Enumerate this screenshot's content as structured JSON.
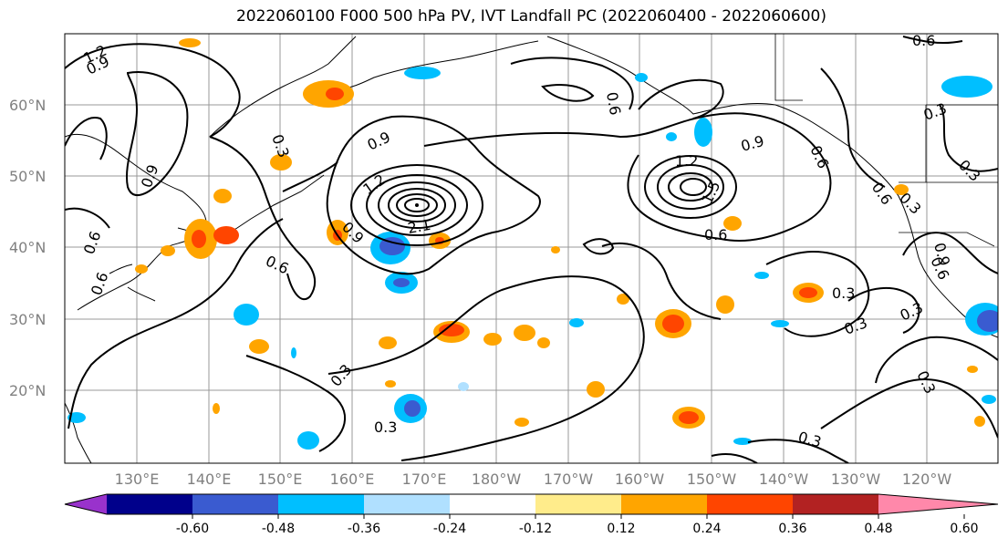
{
  "title": "2022060100 F000 500 hPa PV, IVT Landfall PC (2022060400 - 2022060600)",
  "lat_labels": [
    "60°N",
    "50°N",
    "40°N",
    "30°N",
    "20°N"
  ],
  "lon_labels": [
    "130°E",
    "140°E",
    "150°E",
    "160°E",
    "170°E",
    "180°W",
    "170°W",
    "160°W",
    "150°W",
    "140°W",
    "130°W",
    "120°W"
  ],
  "colorbar": {
    "colors": [
      "#9932cc",
      "#00008b",
      "#3a5bd0",
      "#00bfff",
      "#b0e0ff",
      "#ffffff",
      "#ffec8b",
      "#ffa500",
      "#ff4500",
      "#b22222",
      "#ff88aa"
    ],
    "tick_labels": [
      "-0.60",
      "-0.48",
      "-0.36",
      "-0.24",
      "-0.12",
      "0.12",
      "0.24",
      "0.36",
      "0.48",
      "0.60"
    ]
  },
  "contour_labels": [
    {
      "text": "1.2"
    },
    {
      "text": "0.9"
    },
    {
      "text": "0.3"
    },
    {
      "text": "0.9"
    },
    {
      "text": "0.9"
    },
    {
      "text": "1.2"
    },
    {
      "text": "2.1"
    },
    {
      "text": "0.9"
    },
    {
      "text": "0.6"
    },
    {
      "text": "0.6"
    },
    {
      "text": "0.6"
    },
    {
      "text": "0.6"
    },
    {
      "text": "0.3"
    },
    {
      "text": "0.3"
    },
    {
      "text": "1.2"
    },
    {
      "text": "1.5"
    },
    {
      "text": "0.9"
    },
    {
      "text": "0.6"
    },
    {
      "text": "0.6"
    },
    {
      "text": "0.6"
    },
    {
      "text": "0.6"
    },
    {
      "text": "0.3"
    },
    {
      "text": "0.3"
    },
    {
      "text": "0.3"
    },
    {
      "text": "0.3"
    },
    {
      "text": "0.3"
    },
    {
      "text": "0.3"
    },
    {
      "text": "0.3"
    },
    {
      "text": "0.3"
    },
    {
      "text": "0.6"
    },
    {
      "text": "0.9"
    }
  ]
}
